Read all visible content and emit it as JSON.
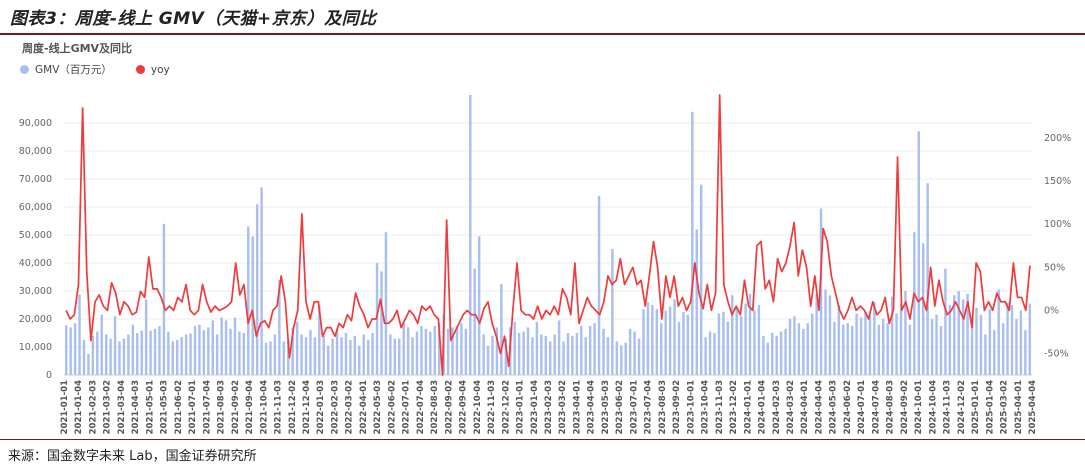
{
  "figure": {
    "title": "图表3：周度-线上 GMV（天猫+京东）及同比",
    "source": "来源：国金数字未来 Lab，国金证券研究所"
  },
  "chart_data": {
    "type": "bar",
    "title": "周度-线上GMV及同比",
    "legend_position": "top-left",
    "grid": true,
    "series": [
      {
        "name": "GMV（百万元）",
        "type": "bar",
        "axis": "left",
        "color": "#a9bff0"
      },
      {
        "name": "yoy",
        "type": "line",
        "axis": "right",
        "color": "#ee3b3b"
      }
    ],
    "left_axis": {
      "min": 0,
      "max": 100000,
      "ticks": [
        0,
        10000,
        20000,
        30000,
        40000,
        50000,
        60000,
        70000,
        80000,
        90000
      ],
      "tick_labels": [
        "0",
        "10,000",
        "20,000",
        "30,000",
        "40,000",
        "50,000",
        "60,000",
        "70,000",
        "80,000",
        "90,000"
      ]
    },
    "right_axis": {
      "min": -0.75,
      "max": 2.5,
      "ticks": [
        -0.5,
        0,
        0.5,
        1.0,
        1.5,
        2.0
      ],
      "tick_labels": [
        "-50%",
        "0%",
        "50%",
        "100%",
        "150%",
        "200%"
      ]
    },
    "x_tick_labels": [
      "2021-01-01",
      "2021-01-04",
      "2021-02-03",
      "2021-03-02",
      "2021-03-04",
      "2021-04-03",
      "2021-05-01",
      "2021-05-03",
      "2021-06-02",
      "2021-07-01",
      "2021-07-04",
      "2021-08-03",
      "2021-09-02",
      "2021-09-04",
      "2021-10-04",
      "2021-11-03",
      "2021-12-02",
      "2021-12-04",
      "2022-01-03",
      "2022-02-03",
      "2022-03-02",
      "2022-04-01",
      "2022-05-03",
      "2022-06-02",
      "2022-07-01",
      "2022-07-04",
      "2022-08-03",
      "2022-09-02",
      "2022-09-04",
      "2022-10-04",
      "2022-11-03",
      "2022-12-02",
      "2023-01-01",
      "2023-01-04",
      "2023-02-03",
      "2023-03-02",
      "2023-04-01",
      "2023-04-04",
      "2023-05-03",
      "2023-06-02",
      "2023-07-01",
      "2023-07-04",
      "2023-08-03",
      "2023-09-02",
      "2023-10-01",
      "2023-10-04",
      "2023-11-03",
      "2023-12-02",
      "2024-01-01",
      "2024-01-04",
      "2024-02-03",
      "2024-03-02",
      "2024-04-01",
      "2024-04-04",
      "2024-05-03",
      "2024-06-02",
      "2024-07-01",
      "2024-07-04",
      "2024-08-03",
      "2024-09-02",
      "2024-10-01",
      "2024-10-04",
      "2024-11-03",
      "2024-12-02",
      "2025-01-01",
      "2025-01-04",
      "2025-03-02",
      "2025-04-01",
      "2025-04-04"
    ],
    "gmv": [
      17800,
      17000,
      18500,
      28700,
      12500,
      7500,
      14000,
      15500,
      21500,
      14500,
      13000,
      21000,
      12000,
      13000,
      14500,
      18000,
      15000,
      15800,
      27000,
      15800,
      16500,
      17500,
      54000,
      15500,
      12000,
      12500,
      13500,
      14500,
      14800,
      17500,
      18000,
      16000,
      17000,
      19500,
      14500,
      20500,
      19500,
      16500,
      20500,
      15500,
      15000,
      53000,
      49500,
      61000,
      67000,
      11500,
      12000,
      14500,
      34000,
      12000,
      12500,
      17000,
      19000,
      14500,
      13500,
      16000,
      13500,
      25000,
      14000,
      10500,
      13000,
      16500,
      13500,
      15000,
      12500,
      14000,
      10500,
      14500,
      12500,
      15000,
      40000,
      37000,
      51000,
      14500,
      13000,
      13000,
      18500,
      17000,
      13500,
      15500,
      17500,
      16500,
      15500,
      17500,
      18500,
      21500,
      16500,
      17000,
      17500,
      18500,
      16500,
      100000,
      38000,
      49500,
      14500,
      10500,
      14000,
      17000,
      32500,
      13000,
      17000,
      19000,
      15000,
      15500,
      17000,
      13500,
      19000,
      14500,
      14000,
      12000,
      14500,
      19500,
      12000,
      15000,
      14000,
      15000,
      17500,
      13500,
      17500,
      18500,
      64000,
      16500,
      13500,
      45000,
      12000,
      10500,
      11500,
      16500,
      15500,
      13000,
      23500,
      26000,
      25000,
      23500,
      18500,
      23000,
      24500,
      27000,
      19000,
      22500,
      21500,
      94000,
      52000,
      68000,
      13500,
      15500,
      15000,
      22000,
      22500,
      19000,
      28500,
      24000,
      21000,
      25500,
      29000,
      23000,
      25000,
      14000,
      11500,
      15000,
      14000,
      15500,
      16500,
      20000,
      21000,
      18500,
      16500,
      18500,
      22000,
      29000,
      59500,
      30500,
      28500,
      19000,
      25000,
      18000,
      18500,
      17500,
      22000,
      20500,
      22500,
      21500,
      26000,
      18000,
      20000,
      18500,
      28000,
      22000,
      25500,
      30000,
      18000,
      51000,
      87000,
      47000,
      68500,
      20000,
      21500,
      17500,
      38000,
      25000,
      28500,
      30000,
      27000,
      29000,
      21000,
      24000,
      21500,
      14500,
      23500,
      16000,
      30500,
      18500,
      26000,
      25000,
      20000,
      23000,
      16000,
      25500
    ],
    "yoy": [
      0.0,
      -0.1,
      -0.05,
      0.3,
      2.35,
      0.45,
      -0.35,
      0.1,
      0.18,
      0.05,
      0.0,
      0.32,
      0.2,
      -0.05,
      0.1,
      0.05,
      -0.05,
      -0.02,
      0.22,
      0.15,
      0.62,
      0.25,
      0.25,
      0.15,
      0.0,
      0.05,
      0.0,
      0.15,
      0.1,
      0.3,
      0.0,
      -0.05,
      0.0,
      0.3,
      0.1,
      -0.02,
      0.05,
      0.0,
      0.02,
      0.05,
      0.1,
      0.55,
      0.18,
      0.3,
      -0.15,
      0.0,
      -0.3,
      -0.15,
      -0.12,
      -0.2,
      0.0,
      0.05,
      0.4,
      0.1,
      -0.55,
      -0.2,
      0.0,
      1.12,
      0.1,
      -0.1,
      0.1,
      0.1,
      -0.3,
      -0.2,
      -0.2,
      -0.3,
      -0.15,
      -0.2,
      -0.05,
      -0.12,
      0.2,
      0.05,
      -0.05,
      -0.2,
      -0.1,
      -0.1,
      0.13,
      -0.15,
      -0.15,
      -0.1,
      0.0,
      -0.2,
      -0.1,
      0.0,
      -0.05,
      -0.15,
      0.05,
      0.0,
      0.05,
      -0.05,
      -0.1,
      -0.75,
      1.05,
      -0.35,
      -0.25,
      -0.15,
      -0.05,
      0.0,
      -0.05,
      -0.05,
      -0.15,
      0.02,
      0.1,
      -0.15,
      -0.3,
      -0.5,
      -0.3,
      -0.65,
      0.0,
      0.55,
      0.0,
      -0.05,
      -0.05,
      -0.1,
      0.05,
      -0.1,
      0.0,
      -0.05,
      0.05,
      -0.05,
      0.25,
      0.15,
      -0.05,
      0.55,
      -0.15,
      0.0,
      0.15,
      0.05,
      0.0,
      -0.05,
      0.1,
      0.4,
      0.3,
      0.35,
      0.6,
      0.3,
      0.4,
      0.5,
      0.3,
      0.35,
      0.05,
      0.4,
      0.8,
      0.5,
      -0.1,
      0.4,
      0.15,
      0.4,
      0.05,
      0.15,
      0.0,
      0.1,
      0.55,
      0.2,
      0.02,
      0.3,
      0.0,
      0.2,
      2.5,
      0.3,
      0.1,
      -0.05,
      0.05,
      -0.05,
      0.35,
      0.05,
      0.0,
      0.75,
      0.8,
      0.25,
      0.35,
      0.1,
      0.6,
      0.45,
      0.55,
      0.75,
      1.02,
      0.4,
      0.7,
      0.5,
      0.05,
      0.4,
      0.0,
      0.95,
      0.8,
      0.4,
      0.2,
      0.0,
      -0.1,
      0.0,
      0.15,
      0.0,
      0.05,
      0.0,
      -0.1,
      0.1,
      -0.05,
      0.0,
      0.15,
      -0.15,
      0.0,
      1.78,
      0.0,
      0.1,
      -0.1,
      0.2,
      0.1,
      0.15,
      0.0,
      0.5,
      0.05,
      0.35,
      0.1,
      -0.05,
      0.0,
      0.1,
      0.0,
      -0.1,
      0.1,
      -0.2,
      0.55,
      0.45,
      0.0,
      0.1,
      0.0,
      0.2,
      0.1,
      0.1,
      0.0,
      0.55,
      0.15,
      0.15,
      0.0,
      0.52
    ]
  }
}
